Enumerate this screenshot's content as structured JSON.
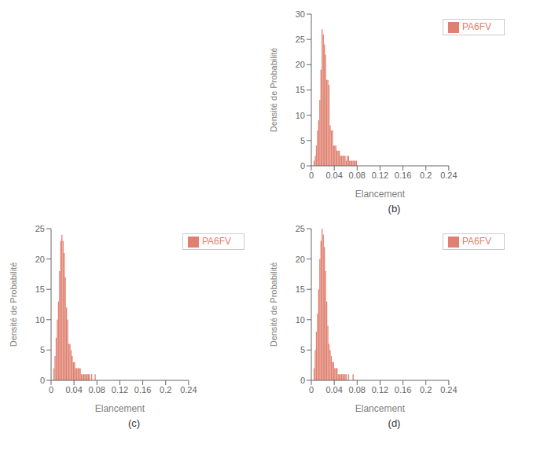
{
  "chart_data": [
    {
      "type": "histogram",
      "bins": [
        0,
        0.002,
        0.004,
        0.006,
        0.008,
        0.01,
        0.012,
        0.014,
        0.016,
        0.018,
        0.02,
        0.022,
        0.024,
        0.026,
        0.028,
        0.03,
        0.032,
        0.034,
        0.036,
        0.038,
        0.04,
        0.042,
        0.044,
        0.046,
        0.048,
        0.05,
        0.052,
        0.054,
        0.056,
        0.058,
        0.06,
        0.062,
        0.064,
        0.066,
        0.068,
        0.07,
        0.072,
        0.074,
        0.076,
        0.078,
        0.08,
        0.082,
        0.084,
        0.086,
        0.088,
        0.09,
        0.092,
        0.094,
        0.096,
        0.098,
        0.1,
        0.102,
        0.104,
        0.106,
        0.108,
        0.11,
        0.112,
        0.114,
        0.116,
        0.118,
        0.12,
        0.122,
        0.124,
        0.126,
        0.128,
        0.13,
        0.132,
        0.134,
        0.136,
        0.138,
        0.14,
        0.142,
        0.144,
        0.146,
        0.148,
        0.15,
        0.152,
        0.154,
        0.156,
        0.158,
        0.16,
        0.162,
        0.164,
        0.166,
        0.168,
        0.17,
        0.172,
        0.174,
        0.176,
        0.178,
        0.18,
        0.182,
        0.184,
        0.186,
        0.188,
        0.19,
        0.192,
        0.194,
        0.196,
        0.198,
        0.2,
        0.202,
        0.204,
        0.206,
        0.208,
        0.21,
        0.212,
        0.214,
        0.216,
        0.218,
        0.22,
        0.222,
        0.224,
        0.226,
        0.228,
        0.23,
        0.232,
        0.234,
        0.236,
        0.238,
        0.24
      ],
      "series": [
        {
          "name": "PA6FV",
          "color": "#e08070",
          "values": [
            0,
            0,
            1,
            2,
            4,
            7,
            9,
            13,
            19,
            27,
            26,
            24,
            22,
            17,
            17,
            16,
            8,
            7,
            7,
            4,
            4,
            4,
            3,
            3,
            3,
            2,
            2,
            2,
            2,
            2,
            1,
            2,
            2,
            1,
            1,
            1,
            1,
            1,
            1,
            1,
            0,
            0,
            0,
            0,
            0,
            0,
            0,
            0,
            0,
            0,
            0,
            0,
            0,
            0,
            0,
            0,
            0,
            0,
            0,
            0,
            0,
            0,
            0,
            0,
            0,
            0,
            0,
            0,
            0,
            0,
            0,
            0,
            0,
            0,
            0,
            0,
            0,
            0,
            0,
            0,
            0,
            0,
            0,
            0,
            0,
            0,
            0,
            0,
            0,
            0,
            0,
            0,
            0,
            0,
            0,
            0,
            0,
            0,
            0,
            0,
            0,
            0,
            0,
            0,
            0,
            0,
            0,
            0,
            0,
            0,
            0,
            0,
            0,
            0,
            0,
            0,
            0,
            0,
            0,
            0
          ]
        }
      ],
      "xlabel": "Elancement",
      "ylabel": "Densité de Probabilité",
      "xlim": [
        0,
        0.24
      ],
      "xticks": [
        0,
        0.04,
        0.08,
        0.12,
        0.16,
        0.2,
        0.24
      ],
      "ylim": [
        0,
        30
      ],
      "yticks": [
        0,
        5,
        10,
        15,
        20,
        25,
        30
      ],
      "legend": "upper right",
      "grid": false,
      "annotations": [
        "(b)"
      ]
    },
    {
      "type": "histogram",
      "bins": [
        0,
        0.002,
        0.004,
        0.006,
        0.008,
        0.01,
        0.012,
        0.014,
        0.016,
        0.018,
        0.02,
        0.022,
        0.024,
        0.026,
        0.028,
        0.03,
        0.032,
        0.034,
        0.036,
        0.038,
        0.04,
        0.042,
        0.044,
        0.046,
        0.048,
        0.05,
        0.052,
        0.054,
        0.056,
        0.058,
        0.06,
        0.062,
        0.064,
        0.066,
        0.068,
        0.07,
        0.072,
        0.074,
        0.076,
        0.078,
        0.08,
        0.082,
        0.084,
        0.086,
        0.088,
        0.09,
        0.092,
        0.094,
        0.096,
        0.098,
        0.1,
        0.102,
        0.104,
        0.106,
        0.108,
        0.11,
        0.112,
        0.114,
        0.116,
        0.118,
        0.12,
        0.122,
        0.124,
        0.126,
        0.128,
        0.13,
        0.132,
        0.134,
        0.136,
        0.138,
        0.14,
        0.142,
        0.144,
        0.146,
        0.148,
        0.15,
        0.152,
        0.154,
        0.156,
        0.158,
        0.16,
        0.162,
        0.164,
        0.166,
        0.168,
        0.17,
        0.172,
        0.174,
        0.176,
        0.178,
        0.18,
        0.182,
        0.184,
        0.186,
        0.188,
        0.19,
        0.192,
        0.194,
        0.196,
        0.198,
        0.2,
        0.202,
        0.204,
        0.206,
        0.208,
        0.21,
        0.212,
        0.214,
        0.216,
        0.218,
        0.22,
        0.222,
        0.224,
        0.226,
        0.228,
        0.23,
        0.232,
        0.234,
        0.236,
        0.238,
        0.24
      ],
      "series": [
        {
          "name": "PA6FV",
          "color": "#e08070",
          "values": [
            0,
            0,
            2,
            4,
            7,
            10,
            13,
            18,
            23,
            24,
            23,
            21,
            17,
            12,
            10,
            6,
            6,
            5,
            4,
            3,
            3,
            2,
            2,
            2,
            2,
            2,
            1,
            1,
            1,
            1,
            1,
            1,
            1,
            1,
            0,
            1,
            0,
            0,
            1,
            0,
            0,
            0,
            0,
            0,
            0,
            0,
            0,
            0,
            0,
            0,
            0,
            0,
            0,
            0,
            0,
            0,
            0,
            0,
            0,
            0,
            0,
            0,
            0,
            0,
            0,
            0,
            0,
            0,
            0,
            0,
            0,
            0,
            0,
            0,
            0,
            0,
            0,
            0,
            0,
            0,
            0,
            0,
            0,
            0,
            0,
            0,
            0,
            0,
            0,
            0,
            0,
            0,
            0,
            0,
            0,
            0,
            0,
            0,
            0,
            0,
            0,
            0,
            0,
            0,
            0,
            0,
            0,
            0,
            0,
            0,
            0,
            0,
            0,
            0,
            0,
            0,
            0,
            0,
            0,
            0
          ]
        }
      ],
      "xlabel": "Elancement",
      "ylabel": "Densité de Probabilité",
      "xlim": [
        0,
        0.24
      ],
      "xticks": [
        0,
        0.04,
        0.08,
        0.12,
        0.16,
        0.2,
        0.24
      ],
      "ylim": [
        0,
        25
      ],
      "yticks": [
        0,
        5,
        10,
        15,
        20,
        25
      ],
      "legend": "upper right",
      "grid": false,
      "annotations": [
        "(c)"
      ]
    },
    {
      "type": "histogram",
      "bins": [
        0,
        0.002,
        0.004,
        0.006,
        0.008,
        0.01,
        0.012,
        0.014,
        0.016,
        0.018,
        0.02,
        0.022,
        0.024,
        0.026,
        0.028,
        0.03,
        0.032,
        0.034,
        0.036,
        0.038,
        0.04,
        0.042,
        0.044,
        0.046,
        0.048,
        0.05,
        0.052,
        0.054,
        0.056,
        0.058,
        0.06,
        0.062,
        0.064,
        0.066,
        0.068,
        0.07,
        0.072,
        0.074,
        0.076,
        0.078,
        0.08,
        0.082,
        0.084,
        0.086,
        0.088,
        0.09,
        0.092,
        0.094,
        0.096,
        0.098,
        0.1,
        0.102,
        0.104,
        0.106,
        0.108,
        0.11,
        0.112,
        0.114,
        0.116,
        0.118,
        0.12,
        0.122,
        0.124,
        0.126,
        0.128,
        0.13,
        0.132,
        0.134,
        0.136,
        0.138,
        0.14,
        0.142,
        0.144,
        0.146,
        0.148,
        0.15,
        0.152,
        0.154,
        0.156,
        0.158,
        0.16,
        0.162,
        0.164,
        0.166,
        0.168,
        0.17,
        0.172,
        0.174,
        0.176,
        0.178,
        0.18,
        0.182,
        0.184,
        0.186,
        0.188,
        0.19,
        0.192,
        0.194,
        0.196,
        0.198,
        0.2,
        0.202,
        0.204,
        0.206,
        0.208,
        0.21,
        0.212,
        0.214,
        0.216,
        0.218,
        0.22,
        0.222,
        0.224,
        0.226,
        0.228,
        0.23,
        0.232,
        0.234,
        0.236,
        0.238,
        0.24
      ],
      "series": [
        {
          "name": "PA6FV",
          "color": "#e08070",
          "values": [
            0,
            0,
            2,
            5,
            8,
            11,
            15,
            20,
            23,
            25,
            24,
            22,
            18,
            13,
            9,
            6,
            5,
            4,
            3,
            3,
            2,
            2,
            2,
            1,
            1,
            1,
            1,
            1,
            1,
            1,
            1,
            0,
            1,
            0,
            0,
            0,
            1,
            0,
            0,
            0,
            0,
            0,
            0,
            0,
            0,
            0,
            0,
            0,
            0,
            0,
            0,
            0,
            0,
            0,
            0,
            0,
            0,
            0,
            0,
            0,
            0,
            0,
            0,
            0,
            0,
            0,
            0,
            0,
            0,
            0,
            0,
            0,
            0,
            0,
            0,
            0,
            0,
            0,
            0,
            0,
            0,
            0,
            0,
            0,
            0,
            0,
            0,
            0,
            0,
            0,
            0,
            0,
            0,
            0,
            0,
            0,
            0,
            0,
            0,
            0,
            0,
            0,
            0,
            0,
            0,
            0,
            0,
            0,
            0,
            0,
            0,
            0,
            0,
            0,
            0,
            0,
            0,
            0,
            0,
            0
          ]
        }
      ],
      "xlabel": "Elancement",
      "ylabel": "Densité de Probabilité",
      "xlim": [
        0,
        0.24
      ],
      "xticks": [
        0,
        0.04,
        0.08,
        0.12,
        0.16,
        0.2,
        0.24
      ],
      "ylim": [
        0,
        25
      ],
      "yticks": [
        0,
        5,
        10,
        15,
        20,
        25
      ],
      "legend": "upper right",
      "grid": false,
      "annotations": [
        "(d)"
      ]
    }
  ]
}
